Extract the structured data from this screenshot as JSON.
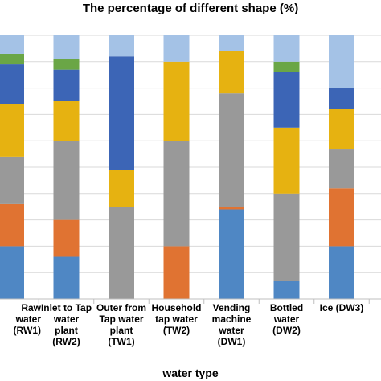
{
  "chart_data": {
    "type": "bar",
    "stacked": true,
    "title": "The percentage of different shape (%)",
    "xlabel": "water type",
    "ylabel": "",
    "ylim": [
      0,
      100
    ],
    "grid": true,
    "categories": [
      "Raw water\n(RW1)",
      "Inlet to Tap\nwater\nplant\n(RW2)",
      "Outer from\nTap water\nplant\n(TW1)",
      "Household\ntap water\n(TW2)",
      "Vending\nmachine\nwater\n(DW1)",
      "Bottled\nwater\n(DW2)",
      "Ice (DW3)"
    ],
    "series": [
      {
        "color": "#4f87c4",
        "values": [
          20,
          16,
          0,
          0,
          34,
          7,
          20
        ]
      },
      {
        "color": "#e07332",
        "values": [
          16,
          14,
          0,
          20,
          1,
          0,
          22
        ]
      },
      {
        "color": "#999999",
        "values": [
          18,
          30,
          35,
          40,
          43,
          33,
          15
        ]
      },
      {
        "color": "#e6b211",
        "values": [
          20,
          15,
          14,
          30,
          16,
          25,
          15
        ]
      },
      {
        "color": "#3c65b6",
        "values": [
          15,
          12,
          43,
          0,
          0,
          21,
          8
        ]
      },
      {
        "color": "#6aa646",
        "values": [
          4,
          4,
          0,
          0,
          0,
          4,
          0
        ]
      },
      {
        "color": "#a4c2e6",
        "values": [
          7,
          9,
          8,
          10,
          6,
          10,
          20
        ]
      }
    ]
  }
}
